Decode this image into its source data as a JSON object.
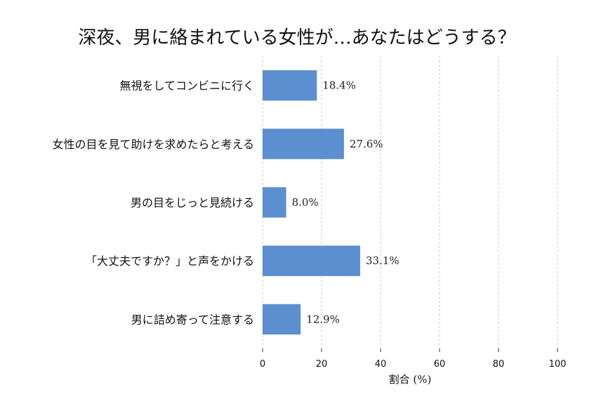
{
  "chart_data": {
    "type": "bar",
    "orientation": "horizontal",
    "title": "深夜、男に絡まれている女性が…あなたはどうする？",
    "xlabel": "割合 (%)",
    "ylabel": "",
    "xlim": [
      0,
      100
    ],
    "xticks": [
      0,
      20,
      40,
      60,
      80,
      100
    ],
    "grid": "vertical dashed",
    "color": "#5b8fd0",
    "categories": [
      "無視をしてコンビニに行く",
      "女性の目を見て助けを求めたらと考える",
      "男の目をじっと見続ける",
      "「大丈夫ですか？」と声をかける",
      "男に詰め寄って注意する"
    ],
    "values": [
      18.4,
      27.6,
      8.0,
      33.1,
      12.9
    ],
    "value_labels": [
      "18.4%",
      "27.6%",
      "8.0%",
      "33.1%",
      "12.9%"
    ]
  }
}
